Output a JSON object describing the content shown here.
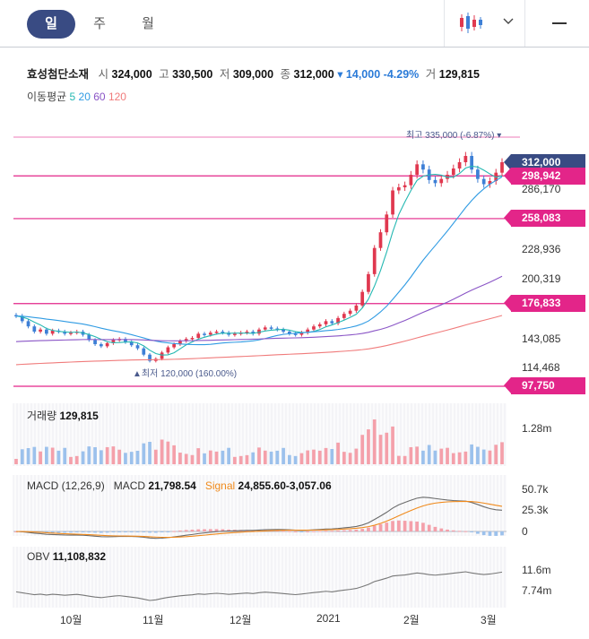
{
  "tabs": [
    {
      "label": "일",
      "active": true
    },
    {
      "label": "주",
      "active": false
    },
    {
      "label": "월",
      "active": false
    }
  ],
  "toolbar": {
    "chart_type_icon": "candlestick-icon",
    "dropdown_icon": "chevron-down-icon",
    "menu_icon": "minus-icon"
  },
  "quote": {
    "name": "효성첨단소재",
    "open_label": "시",
    "open": "324,000",
    "high_label": "고",
    "high": "330,500",
    "low_label": "저",
    "low": "309,000",
    "close_label": "종",
    "close": "312,000",
    "change": "▾ 14,000",
    "change_pct": "-4.29%",
    "volume_label": "거",
    "volume": "129,815"
  },
  "moving_average": {
    "label": "이동평균",
    "p5": "5",
    "p20": "20",
    "p60": "60",
    "p120": "120"
  },
  "price_panel": {
    "high_annotation": "최고  335,000 (-6.87%) ▾",
    "low_annotation": "▲최저  120,000 (160.00%)",
    "axis_ticks": [
      "286,170",
      "228,936",
      "200,319",
      "143,085",
      "114,468"
    ],
    "tags": [
      {
        "text": "312,000",
        "style": "navy"
      },
      {
        "text": "298,942",
        "style": "pink"
      },
      {
        "text": "258,083",
        "style": "pink"
      },
      {
        "text": "176,833",
        "style": "pink"
      },
      {
        "text": "97,750",
        "style": "pink"
      }
    ]
  },
  "volume_panel": {
    "label": "거래량",
    "value": "129,815",
    "axis_tick": "1.28m"
  },
  "macd_panel": {
    "label": "MACD (12,26,9)",
    "macd_label": "MACD",
    "macd_value": "21,798.54",
    "signal_label": "Signal",
    "signal_value": "24,855.60",
    "hist_value": "-3,057.06",
    "axis_ticks": [
      "50.7k",
      "25.3k",
      "0"
    ]
  },
  "obv_panel": {
    "label": "OBV",
    "value": "11,108,832",
    "axis_ticks": [
      "11.6m",
      "7.74m"
    ]
  },
  "x_axis": [
    "10월",
    "11월",
    "12월",
    "2021",
    "2월",
    "3월"
  ],
  "colors": {
    "up": "#e0384f",
    "down": "#3d7fd6",
    "accent": "#394b83",
    "level": "#e32589",
    "ma5": "#25b8b2",
    "ma20": "#2f9be3",
    "ma60": "#8a55c6",
    "ma120": "#f07b7b"
  },
  "chart_data": {
    "type": "candlestick",
    "price_series_close": [
      165000,
      160000,
      155000,
      150000,
      152000,
      148000,
      151000,
      150000,
      148000,
      149000,
      150000,
      147000,
      142000,
      138000,
      136000,
      139000,
      142000,
      143000,
      140000,
      137000,
      134000,
      128000,
      122000,
      124000,
      130000,
      135000,
      138000,
      141000,
      143000,
      144000,
      148000,
      147000,
      149000,
      150000,
      149000,
      147000,
      148000,
      149000,
      150000,
      148000,
      152000,
      154000,
      153000,
      152000,
      150000,
      148000,
      147000,
      149000,
      152000,
      155000,
      157000,
      160000,
      158000,
      163000,
      167000,
      170000,
      175000,
      188000,
      205000,
      230000,
      245000,
      262000,
      285000,
      288000,
      290000,
      300000,
      310000,
      305000,
      295000,
      292000,
      296000,
      300000,
      306000,
      312000,
      318000,
      305000,
      296000,
      291000,
      294000,
      302000,
      312000
    ],
    "ma_legend": [
      "5",
      "20",
      "60",
      "120"
    ],
    "price_levels": [
      312000,
      298942,
      258083,
      176833,
      97750
    ],
    "high": 335000,
    "low": 120000,
    "volume_last": 129815,
    "macd": 21798.54,
    "signal": 24855.6,
    "histogram": -3057.06,
    "obv": 11108832,
    "x_labels": [
      "10월",
      "11월",
      "12월",
      "2021",
      "2월",
      "3월"
    ]
  }
}
